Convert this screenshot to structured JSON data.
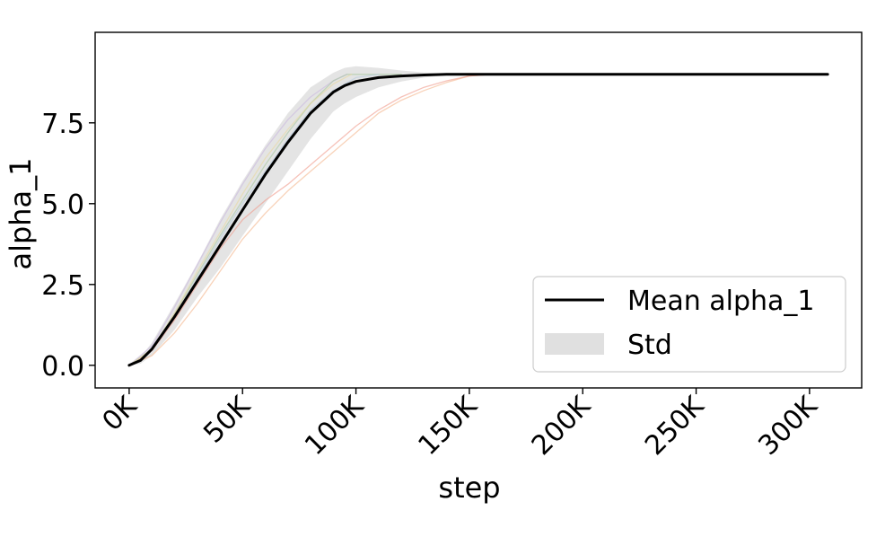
{
  "chart_data": {
    "type": "line",
    "title": "",
    "xlabel": "step",
    "ylabel": "alpha_1",
    "xlim": [
      -15000,
      323000
    ],
    "ylim": [
      -0.7,
      10.3
    ],
    "x_ticks": [
      0,
      50000,
      100000,
      150000,
      200000,
      250000,
      300000
    ],
    "x_tick_labels": [
      "0K",
      "50K",
      "100K",
      "150K",
      "200K",
      "250K",
      "300K"
    ],
    "y_ticks": [
      0.0,
      2.5,
      5.0,
      7.5
    ],
    "y_tick_labels": [
      "0.0",
      "2.5",
      "5.0",
      "7.5"
    ],
    "grid": false,
    "legend_position": "lower-right",
    "legend": [
      {
        "label": "Mean alpha_1",
        "kind": "line",
        "color": "#000000"
      },
      {
        "label": "Std",
        "kind": "band",
        "color": "#e0e0e0"
      }
    ],
    "series": [
      {
        "name": "Mean alpha_1",
        "color": "#000000",
        "width": 3,
        "x": [
          0,
          5000,
          10000,
          20000,
          30000,
          40000,
          50000,
          60000,
          70000,
          80000,
          90000,
          95000,
          100000,
          110000,
          120000,
          130000,
          140000,
          150000,
          160000,
          200000,
          250000,
          308000
        ],
        "y": [
          0.0,
          0.15,
          0.5,
          1.5,
          2.6,
          3.7,
          4.8,
          5.9,
          6.9,
          7.8,
          8.45,
          8.65,
          8.78,
          8.9,
          8.95,
          8.98,
          9.0,
          9.0,
          9.0,
          9.0,
          9.0,
          9.0
        ]
      },
      {
        "color": "#f4b48a",
        "width": 1.3,
        "opacity": 0.6,
        "x": [
          0,
          10000,
          20000,
          30000,
          40000,
          50000,
          60000,
          70000,
          80000,
          90000,
          100000,
          110000,
          120000,
          130000,
          140000,
          150000,
          160000
        ],
        "y": [
          0.0,
          0.3,
          1.0,
          1.9,
          2.9,
          3.9,
          4.7,
          5.4,
          6.0,
          6.6,
          7.2,
          7.8,
          8.2,
          8.5,
          8.75,
          8.95,
          9.0
        ]
      },
      {
        "color": "#f09a8a",
        "width": 1.3,
        "opacity": 0.6,
        "x": [
          0,
          10000,
          20000,
          30000,
          40000,
          50000,
          60000,
          70000,
          80000,
          90000,
          100000,
          110000,
          120000,
          130000,
          140000,
          150000,
          160000
        ],
        "y": [
          0.0,
          0.45,
          1.4,
          2.5,
          3.6,
          4.5,
          5.1,
          5.6,
          6.2,
          6.8,
          7.4,
          7.9,
          8.3,
          8.6,
          8.8,
          8.95,
          9.0
        ]
      },
      {
        "color": "#c9b8e0",
        "width": 1.3,
        "opacity": 0.6,
        "x": [
          0,
          10000,
          20000,
          30000,
          40000,
          50000,
          60000,
          70000,
          80000,
          90000,
          96000
        ],
        "y": [
          0.0,
          0.6,
          1.8,
          3.1,
          4.4,
          5.6,
          6.7,
          7.6,
          8.3,
          8.8,
          9.0
        ]
      },
      {
        "color": "#a8c8a0",
        "width": 1.3,
        "opacity": 0.6,
        "x": [
          0,
          10000,
          20000,
          30000,
          40000,
          50000,
          60000,
          70000,
          80000,
          90000,
          96000,
          120000
        ],
        "y": [
          0.0,
          0.5,
          1.6,
          2.8,
          4.0,
          5.1,
          6.2,
          7.2,
          8.1,
          8.8,
          9.0,
          9.0
        ]
      },
      {
        "color": "#b8cce0",
        "width": 1.3,
        "opacity": 0.6,
        "x": [
          0,
          10000,
          20000,
          30000,
          40000,
          50000,
          60000,
          70000,
          80000,
          90000,
          100000,
          110000
        ],
        "y": [
          0.0,
          0.5,
          1.5,
          2.7,
          3.9,
          5.0,
          6.0,
          7.0,
          7.9,
          8.5,
          8.9,
          9.0
        ]
      },
      {
        "color": "#e8d8a0",
        "width": 1.3,
        "opacity": 0.6,
        "x": [
          0,
          10000,
          20000,
          30000,
          40000,
          50000,
          60000,
          70000,
          80000,
          90000,
          98000
        ],
        "y": [
          0.0,
          0.5,
          1.6,
          2.9,
          4.1,
          5.3,
          6.4,
          7.3,
          8.1,
          8.7,
          9.0
        ]
      }
    ],
    "std_band": {
      "color": "#d9d9d9",
      "opacity": 0.7,
      "x": [
        0,
        5000,
        10000,
        20000,
        30000,
        40000,
        50000,
        60000,
        70000,
        80000,
        90000,
        95000,
        100000,
        110000,
        120000,
        130000,
        140000,
        150000,
        160000,
        308000
      ],
      "upper": [
        0.02,
        0.25,
        0.7,
        1.9,
        3.15,
        4.5,
        5.7,
        6.8,
        7.8,
        8.6,
        9.05,
        9.2,
        9.25,
        9.2,
        9.12,
        9.06,
        9.02,
        9.0,
        9.0,
        9.0
      ],
      "lower": [
        0.0,
        0.05,
        0.3,
        1.1,
        2.1,
        3.0,
        4.0,
        5.0,
        6.0,
        7.0,
        7.85,
        8.1,
        8.3,
        8.6,
        8.78,
        8.9,
        8.97,
        9.0,
        9.0,
        9.0
      ]
    }
  }
}
